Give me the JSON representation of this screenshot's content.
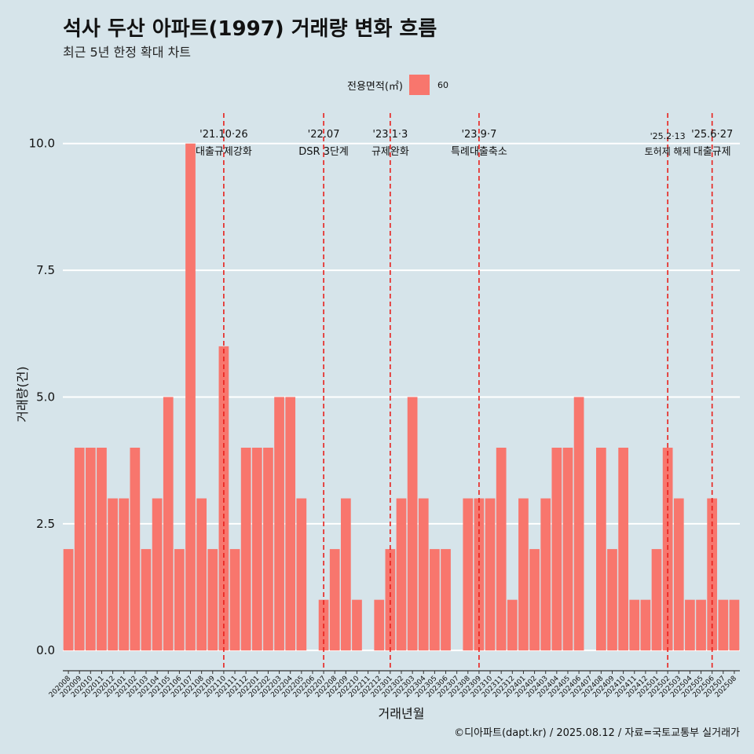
{
  "title": "석사 두산 아파트(1997) 거래량 변화 흐름",
  "subtitle": "최근 5년 한정 확대 차트",
  "legend": {
    "title": "전용면적(㎡)",
    "items": [
      {
        "label": "60",
        "color": "#F8766D"
      }
    ]
  },
  "caption": "©디아파트(dapt.kr) / 2025.08.12 / 자료=국토교통부 실거래가",
  "chart_data": {
    "type": "bar",
    "xlabel": "거래년월",
    "ylabel": "거래량(건)",
    "ylim": [
      -0.4,
      10.6
    ],
    "yticks": [
      0.0,
      2.5,
      5.0,
      7.5,
      10.0
    ],
    "ytick_labels": [
      "0.0",
      "2.5",
      "5.0",
      "7.5",
      "10.0"
    ],
    "bar_color": "#F8766D",
    "grid": true,
    "legend_position": "top",
    "categories": [
      "202008",
      "202009",
      "202010",
      "202011",
      "202012",
      "202101",
      "202102",
      "202103",
      "202104",
      "202105",
      "202106",
      "202107",
      "202108",
      "202109",
      "202110",
      "202111",
      "202112",
      "202201",
      "202202",
      "202203",
      "202204",
      "202205",
      "202206",
      "202207",
      "202208",
      "202209",
      "202210",
      "202211",
      "202212",
      "202301",
      "202302",
      "202303",
      "202304",
      "202305",
      "202306",
      "202307",
      "202308",
      "202309",
      "202310",
      "202311",
      "202312",
      "202401",
      "202402",
      "202403",
      "202404",
      "202405",
      "202406",
      "202407",
      "202408",
      "202409",
      "202410",
      "202411",
      "202412",
      "202501",
      "202502",
      "202503",
      "202504",
      "202505",
      "202506",
      "202507",
      "202508"
    ],
    "series": [
      {
        "values": [
          2,
          4,
          4,
          4,
          3,
          3,
          4,
          2,
          3,
          5,
          2,
          10,
          3,
          2,
          6,
          2,
          4,
          4,
          4,
          5,
          5,
          3,
          0,
          1,
          2,
          3,
          1,
          0,
          1,
          2,
          3,
          5,
          3,
          2,
          2,
          0,
          3,
          3,
          3,
          4,
          1,
          3,
          2,
          3,
          4,
          4,
          5,
          0,
          4,
          2,
          4,
          1,
          1,
          2,
          4,
          3,
          1,
          1,
          3,
          1,
          1
        ]
      }
    ],
    "annotations": [
      {
        "x": "202110",
        "date": "'21.10·26",
        "text": "대출규제강화"
      },
      {
        "x": "202207",
        "date": "'22.07",
        "text": "DSR 3단계"
      },
      {
        "x": "202301",
        "date": "'23.1·3",
        "text": "규제완화"
      },
      {
        "x": "202309",
        "date": "'23.9·7",
        "text": "특례대출축소"
      },
      {
        "x": "202502",
        "date": "'25.2·13",
        "text": "토허제 해제"
      },
      {
        "x": "202506",
        "date": "'25.6·27",
        "text": "대출규제"
      }
    ]
  }
}
